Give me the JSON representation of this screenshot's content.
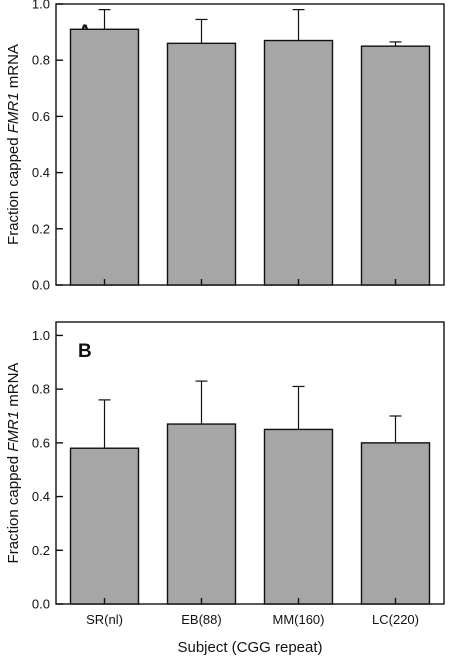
{
  "chart_data": [
    {
      "type": "bar",
      "panel_label": "A",
      "ylabel_prefix": "Fraction capped ",
      "ylabel_gene": "FMR1",
      "ylabel_suffix": " mRNA",
      "ylim": [
        0,
        1.0
      ],
      "yticks": [
        "0.0",
        "0.2",
        "0.4",
        "0.6",
        "0.8",
        "1.0"
      ],
      "categories": [
        "SR(nl)",
        "EB(88)",
        "MM(160)",
        "LC(220)"
      ],
      "values": [
        0.91,
        0.86,
        0.87,
        0.85
      ],
      "errors": [
        0.07,
        0.085,
        0.11,
        0.015
      ],
      "show_xticklabels": false
    },
    {
      "type": "bar",
      "panel_label": "B",
      "ylabel_prefix": "Fraction capped ",
      "ylabel_gene": "FMR1",
      "ylabel_suffix": " mRNA",
      "ylim": [
        0,
        1.05
      ],
      "yticks": [
        "0.0",
        "0.2",
        "0.4",
        "0.6",
        "0.8",
        "1.0"
      ],
      "categories": [
        "SR(nl)",
        "EB(88)",
        "MM(160)",
        "LC(220)"
      ],
      "values": [
        0.58,
        0.67,
        0.65,
        0.6
      ],
      "errors": [
        0.18,
        0.16,
        0.16,
        0.1
      ],
      "show_xticklabels": true,
      "xlabel": "Subject (CGG repeat)"
    }
  ]
}
